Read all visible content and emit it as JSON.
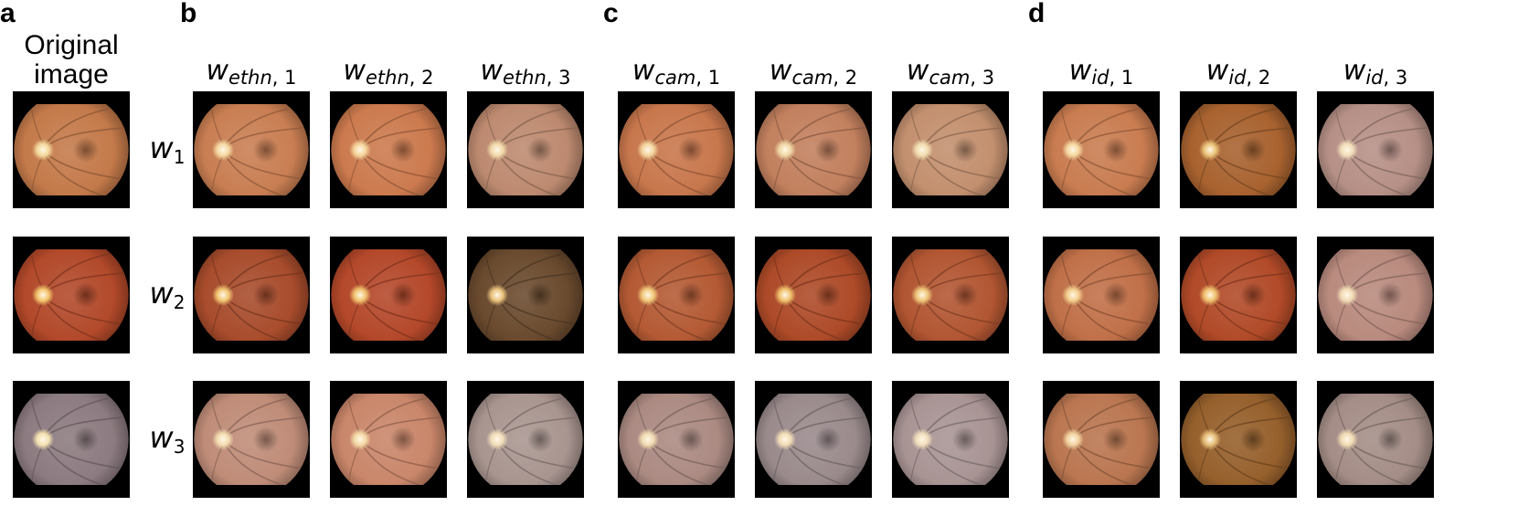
{
  "panels": {
    "a": "a",
    "b": "b",
    "c": "c",
    "d": "d"
  },
  "original_title": {
    "line1": "Original",
    "line2": "image"
  },
  "rows": [
    {
      "symbol": "w",
      "index": "1"
    },
    {
      "symbol": "w",
      "index": "2"
    },
    {
      "symbol": "w",
      "index": "3"
    }
  ],
  "columns": [
    {
      "symbol": "w",
      "subscript": "ethn",
      "index": "1"
    },
    {
      "symbol": "w",
      "subscript": "ethn",
      "index": "2"
    },
    {
      "symbol": "w",
      "subscript": "ethn",
      "index": "3"
    },
    {
      "symbol": "w",
      "subscript": "cam",
      "index": "1"
    },
    {
      "symbol": "w",
      "subscript": "cam",
      "index": "2"
    },
    {
      "symbol": "w",
      "subscript": "cam",
      "index": "3"
    },
    {
      "symbol": "w",
      "subscript": "id",
      "index": "1"
    },
    {
      "symbol": "w",
      "subscript": "id",
      "index": "2"
    },
    {
      "symbol": "w",
      "subscript": "id",
      "index": "3"
    }
  ],
  "images": {
    "original": [
      {
        "fundus": "#c47a4a",
        "disc": "#f3d79a"
      },
      {
        "fundus": "#b2492a",
        "disc": "#f2c36a"
      },
      {
        "fundus": "#8c7b80",
        "disc": "#f3e0b0"
      }
    ],
    "grid": [
      [
        {
          "fundus": "#c97e52",
          "disc": "#f4d7a0"
        },
        {
          "fundus": "#cc7a4e",
          "disc": "#f4d39a"
        },
        {
          "fundus": "#bd8a70",
          "disc": "#f1d9a8"
        },
        {
          "fundus": "#c8774c",
          "disc": "#f3d39c"
        },
        {
          "fundus": "#c2805e",
          "disc": "#f0d6a4"
        },
        {
          "fundus": "#c3906f",
          "disc": "#f0dbad"
        },
        {
          "fundus": "#c97c50",
          "disc": "#f4d69e"
        },
        {
          "fundus": "#a8622f",
          "disc": "#eac278"
        },
        {
          "fundus": "#b69086",
          "disc": "#f1dcb8"
        }
      ],
      [
        {
          "fundus": "#a84c2c",
          "disc": "#f0c36f"
        },
        {
          "fundus": "#b4482a",
          "disc": "#f0c06c"
        },
        {
          "fundus": "#6a4a2e",
          "disc": "#e8c07a"
        },
        {
          "fundus": "#b45a34",
          "disc": "#f1c879"
        },
        {
          "fundus": "#ad4a28",
          "disc": "#efc06c"
        },
        {
          "fundus": "#b25632",
          "disc": "#eec478"
        },
        {
          "fundus": "#c07048",
          "disc": "#f2cc8a"
        },
        {
          "fundus": "#b14a28",
          "disc": "#efbf6c"
        },
        {
          "fundus": "#b98a7e",
          "disc": "#f1dab4"
        }
      ],
      [
        {
          "fundus": "#bf8c78",
          "disc": "#f2daae"
        },
        {
          "fundus": "#c9866a",
          "disc": "#f3d7a4"
        },
        {
          "fundus": "#a99590",
          "disc": "#f0dcb8"
        },
        {
          "fundus": "#ab8a82",
          "disc": "#f0d9b0"
        },
        {
          "fundus": "#9a8a8c",
          "disc": "#efdab4"
        },
        {
          "fundus": "#a99494",
          "disc": "#f0dcba"
        },
        {
          "fundus": "#ba7650",
          "disc": "#f1d09c"
        },
        {
          "fundus": "#96602c",
          "disc": "#e6bd78"
        },
        {
          "fundus": "#a48d86",
          "disc": "#efd9b2"
        }
      ]
    ]
  }
}
